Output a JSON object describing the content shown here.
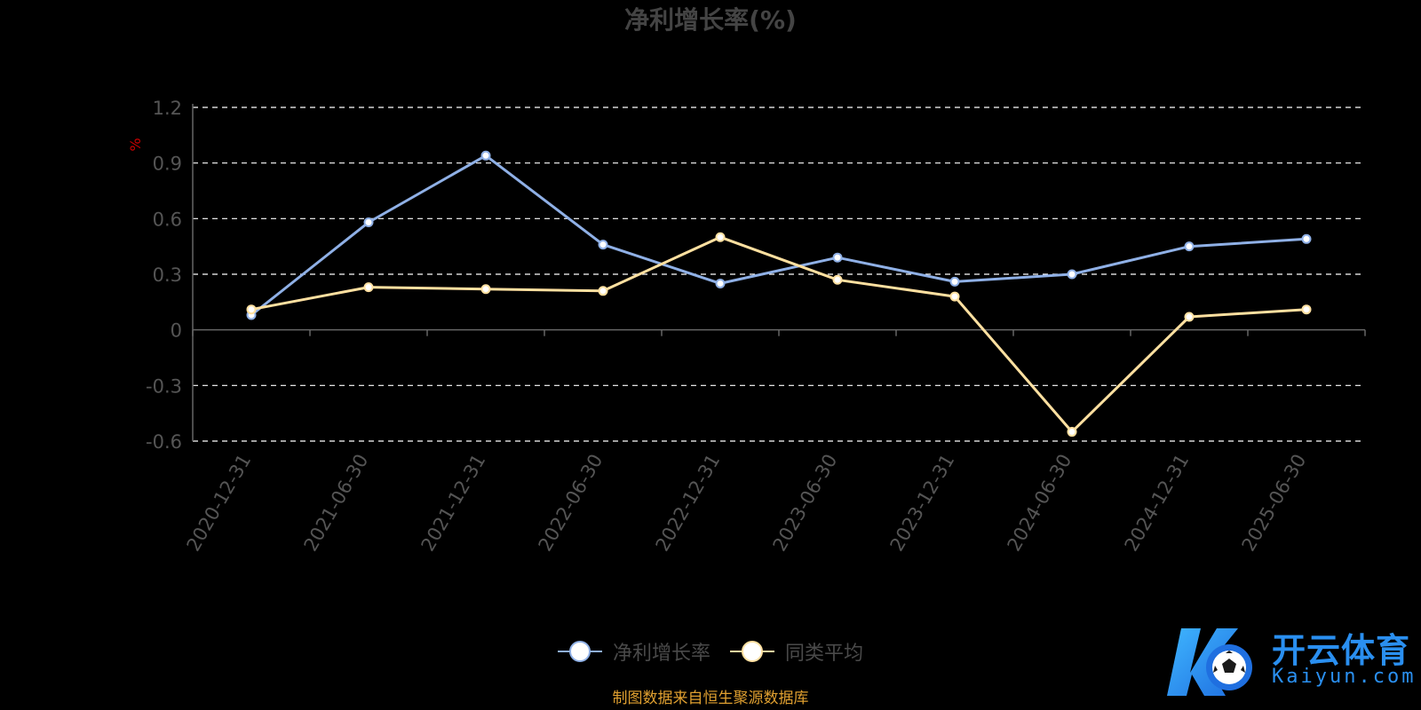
{
  "chart_data": {
    "type": "line",
    "title": "净利增长率(%)",
    "ylabel": "%",
    "xlabel": "",
    "categories": [
      "2020-12-31",
      "2021-06-30",
      "2021-12-31",
      "2022-06-30",
      "2022-12-31",
      "2023-06-30",
      "2023-12-31",
      "2024-06-30",
      "2024-12-31",
      "2025-06-30"
    ],
    "ylim": [
      -0.6,
      1.2
    ],
    "yticks": [
      "1.2",
      "0.9",
      "0.6",
      "0.3",
      "0",
      "-0.3",
      "-0.6"
    ],
    "ytick_values": [
      1.2,
      0.9,
      0.6,
      0.3,
      0,
      -0.3,
      -0.6
    ],
    "grid": true,
    "legend_position": "bottom",
    "series": [
      {
        "name": "净利增长率",
        "color": "#8fb0e6",
        "values": [
          0.08,
          0.58,
          0.94,
          0.46,
          0.25,
          0.39,
          0.26,
          0.3,
          0.45,
          0.49
        ]
      },
      {
        "name": "同类平均",
        "color": "#ffe0a0",
        "values": [
          0.11,
          0.23,
          0.22,
          0.21,
          0.5,
          0.27,
          0.18,
          -0.55,
          0.07,
          0.11
        ]
      }
    ]
  },
  "colors": {
    "title": "#444444",
    "axis_label": "#555555",
    "ylabel": "#cc0000",
    "grid": "#ffffff",
    "axis_line": "#666666",
    "source": "#e0a030",
    "logo_blue": "#2a8ff0"
  },
  "legend": {
    "items": [
      "净利增长率",
      "同类平均"
    ]
  },
  "source_text": "制图数据来自恒生聚源数据库",
  "logo": {
    "cn": "开云体育",
    "en": "Kaiyun.com",
    "icon": "kaiyun-logo-icon"
  }
}
